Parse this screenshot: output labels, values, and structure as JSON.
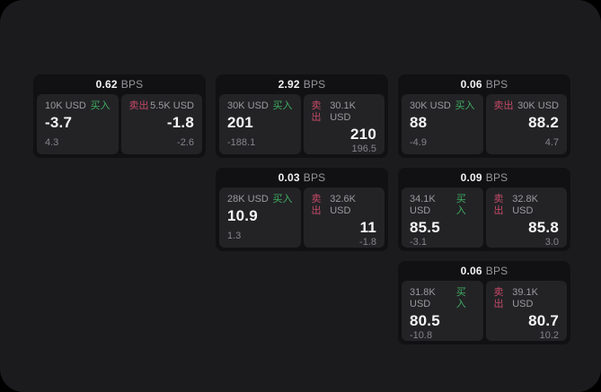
{
  "page": {
    "outer_background": "#000000",
    "panel_background": "#1b1b1d"
  },
  "colors": {
    "buy_green": "#3fae62",
    "sell_red": "#c44a66",
    "card_background": "#111113",
    "tile_background": "#232326"
  },
  "labels": {
    "bps_unit": "BPS",
    "buy": "买入",
    "sell": "卖出"
  },
  "cards": [
    {
      "bps": "0.62",
      "buy": {
        "size": "10K USD",
        "price": "-3.7",
        "delta": "4.3"
      },
      "sell": {
        "size": "5.5K USD",
        "price": "-1.8",
        "delta": "-2.6"
      }
    },
    {
      "bps": "2.92",
      "buy": {
        "size": "30K USD",
        "price": "201",
        "delta": "-188.1"
      },
      "sell": {
        "size": "30.1K USD",
        "price": "210",
        "delta": "196.5"
      }
    },
    {
      "bps": "0.06",
      "buy": {
        "size": "30K USD",
        "price": "88",
        "delta": "-4.9"
      },
      "sell": {
        "size": "30K USD",
        "price": "88.2",
        "delta": "4.7"
      }
    },
    {
      "bps": "0.03",
      "buy": {
        "size": "28K USD",
        "price": "10.9",
        "delta": "1.3"
      },
      "sell": {
        "size": "32.6K USD",
        "price": "11",
        "delta": "-1.8"
      }
    },
    {
      "bps": "0.09",
      "buy": {
        "size": "34.1K USD",
        "price": "85.5",
        "delta": "-3.1"
      },
      "sell": {
        "size": "32.8K USD",
        "price": "85.8",
        "delta": "3.0"
      }
    },
    {
      "bps": "0.06",
      "buy": {
        "size": "31.8K USD",
        "price": "80.5",
        "delta": "-10.8"
      },
      "sell": {
        "size": "39.1K USD",
        "price": "80.7",
        "delta": "10.2"
      }
    }
  ]
}
